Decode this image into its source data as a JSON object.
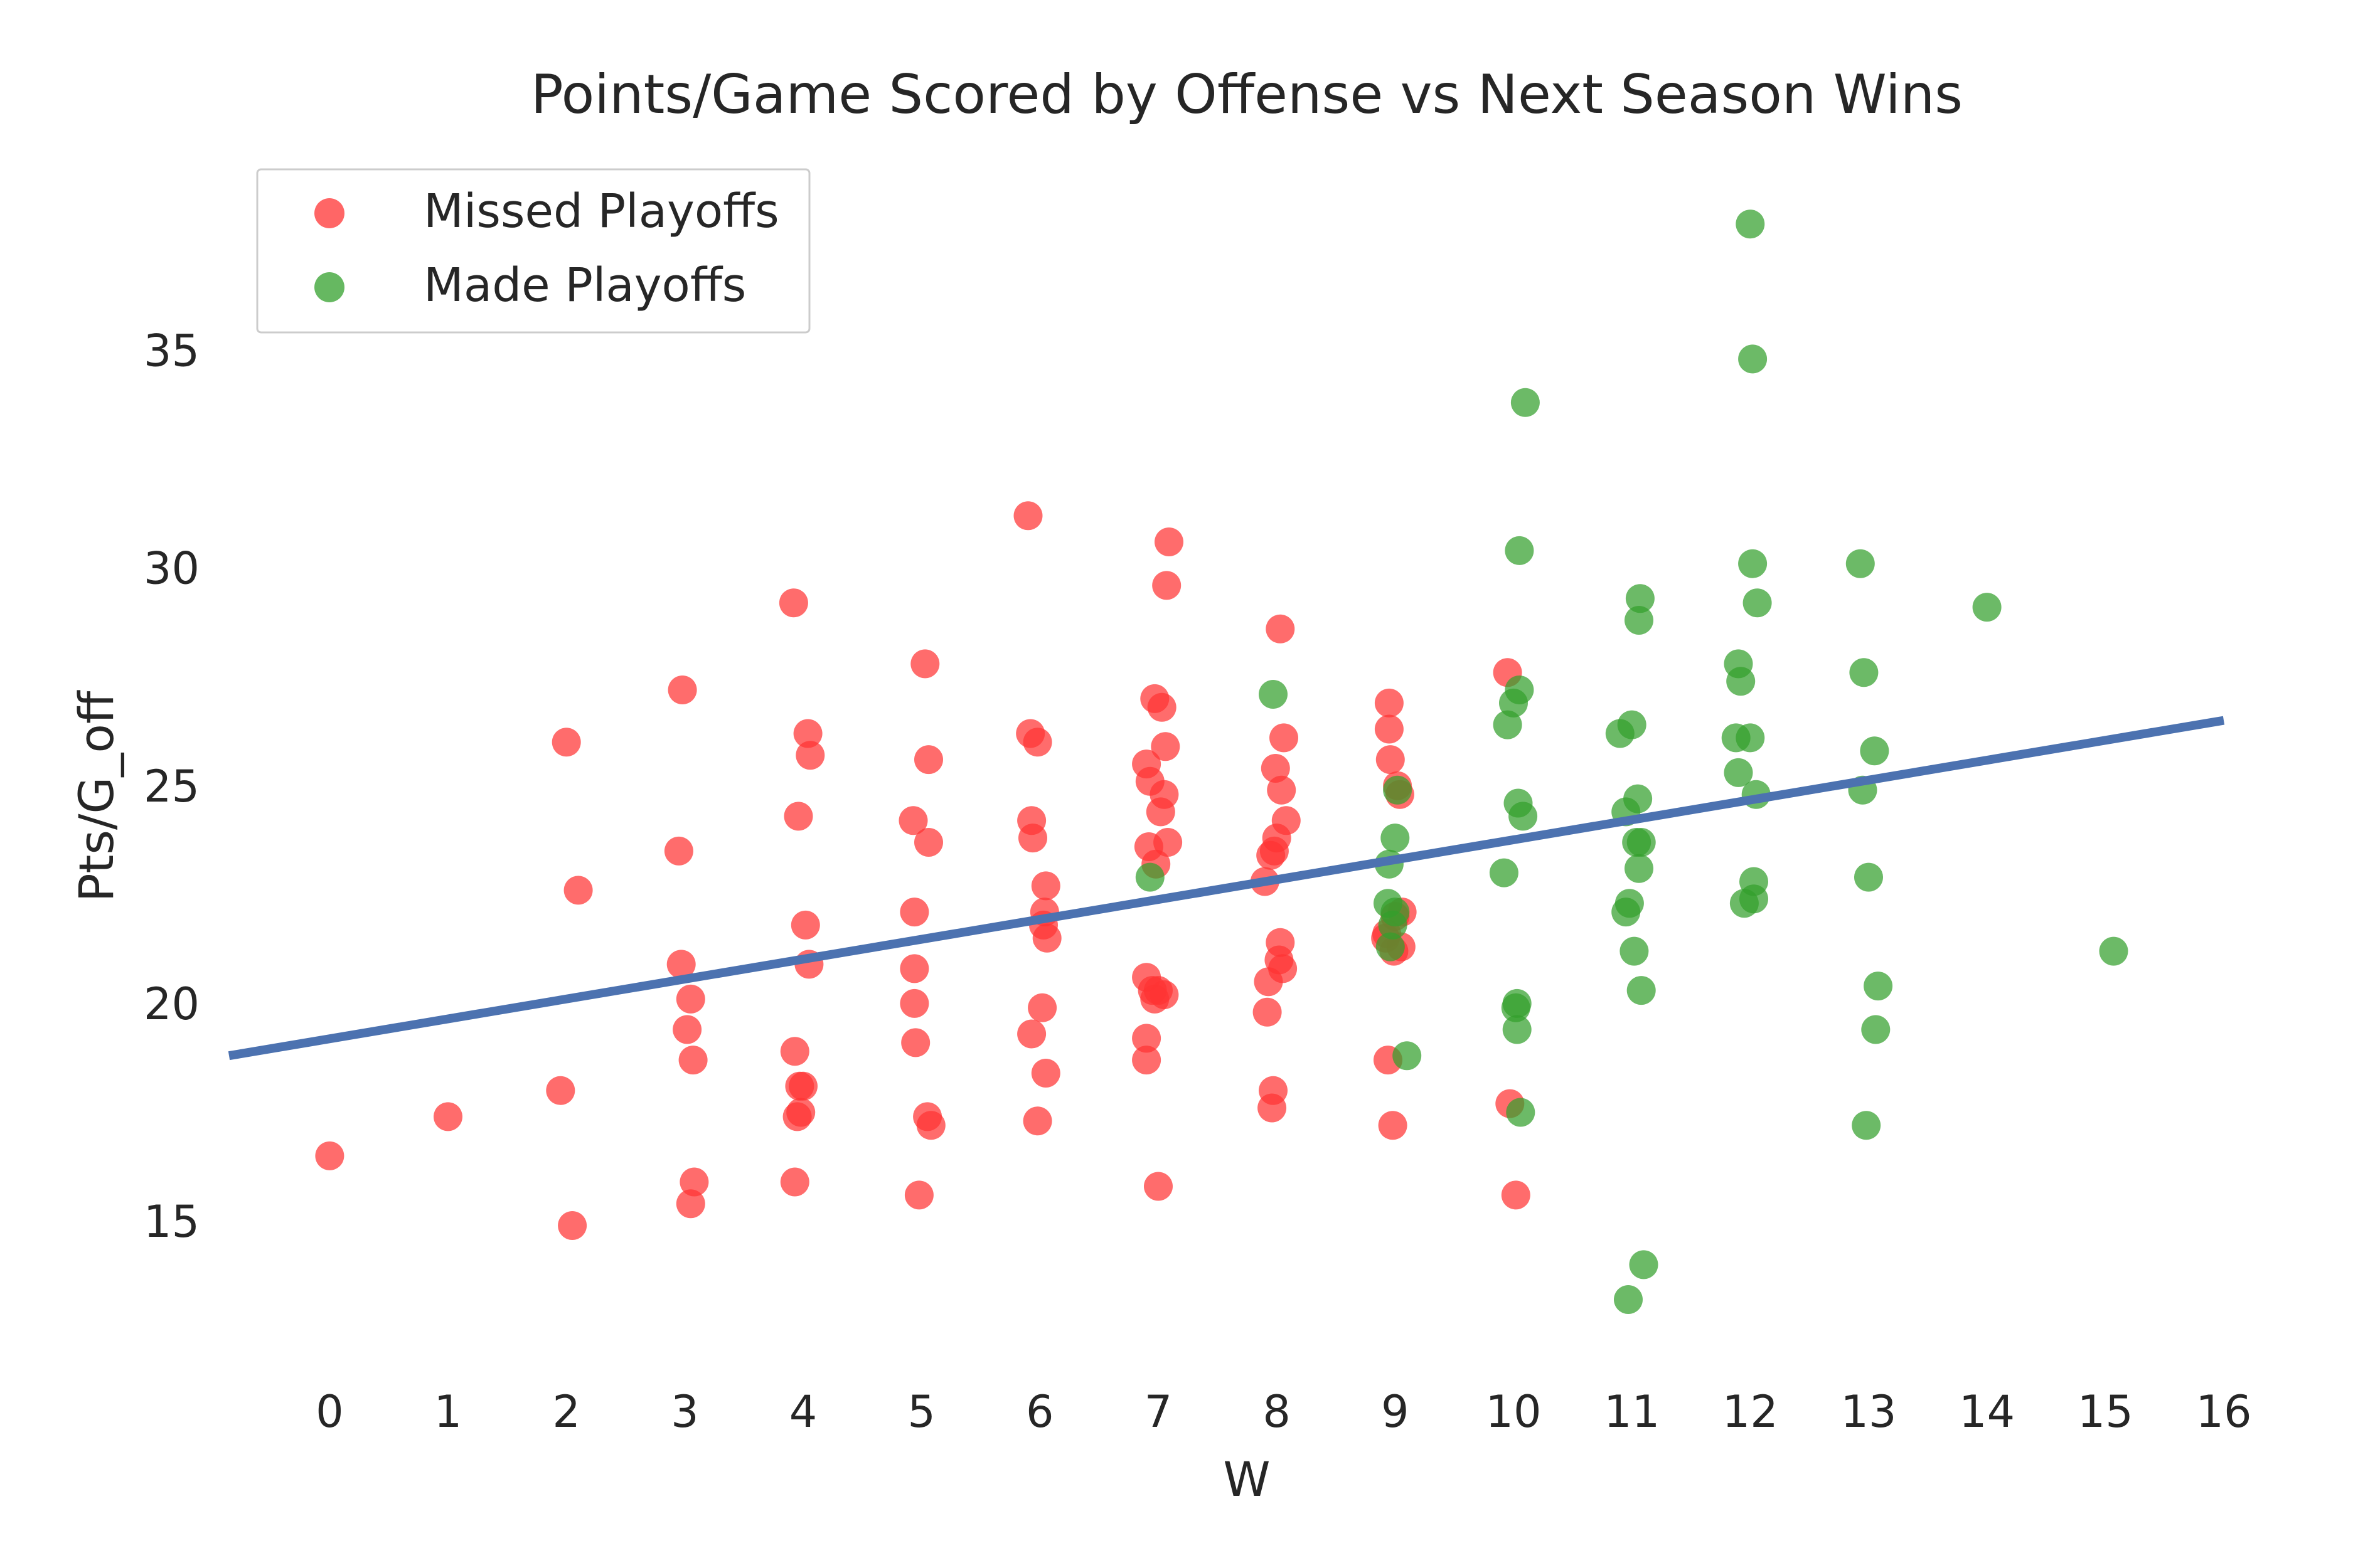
{
  "chart_data": {
    "type": "scatter",
    "title": "Points/Game Scored by Offense vs Next Season Wins",
    "xlabel": "W",
    "ylabel": "Pts/G_off",
    "xlim": [
      -0.85,
      16.35
    ],
    "ylim": [
      11.5,
      39.3
    ],
    "xticks": [
      0,
      1,
      2,
      3,
      4,
      5,
      6,
      7,
      8,
      9,
      10,
      11,
      12,
      13,
      14,
      15,
      16
    ],
    "yticks": [
      15,
      20,
      25,
      30,
      35
    ],
    "grid": false,
    "legend": "top-left",
    "regression_line": {
      "x": [
        -0.85,
        16.0
      ],
      "y": [
        18.8,
        26.5
      ],
      "color": "#4c72b0"
    },
    "series": [
      {
        "name": "Missed Playoffs",
        "color": "#ff3333",
        "points": [
          [
            0.0,
            16.5
          ],
          [
            1.0,
            17.4
          ],
          [
            1.95,
            18.0
          ],
          [
            2.0,
            26.0
          ],
          [
            2.05,
            14.9
          ],
          [
            2.1,
            22.6
          ],
          [
            2.95,
            23.5
          ],
          [
            2.97,
            20.9
          ],
          [
            2.98,
            27.2
          ],
          [
            3.02,
            19.4
          ],
          [
            3.05,
            20.1
          ],
          [
            3.05,
            15.4
          ],
          [
            3.07,
            18.7
          ],
          [
            3.08,
            15.9
          ],
          [
            3.92,
            29.2
          ],
          [
            3.93,
            18.9
          ],
          [
            3.93,
            15.9
          ],
          [
            3.95,
            17.4
          ],
          [
            3.96,
            24.3
          ],
          [
            3.97,
            18.1
          ],
          [
            3.98,
            17.5
          ],
          [
            4.0,
            18.1
          ],
          [
            4.02,
            21.8
          ],
          [
            4.04,
            26.2
          ],
          [
            4.05,
            20.9
          ],
          [
            4.06,
            25.7
          ],
          [
            4.93,
            24.2
          ],
          [
            4.94,
            22.1
          ],
          [
            4.94,
            20.8
          ],
          [
            4.94,
            20.0
          ],
          [
            4.95,
            19.1
          ],
          [
            4.98,
            15.6
          ],
          [
            5.03,
            27.8
          ],
          [
            5.05,
            17.4
          ],
          [
            5.06,
            25.6
          ],
          [
            5.06,
            23.7
          ],
          [
            5.08,
            17.2
          ],
          [
            5.9,
            31.2
          ],
          [
            5.92,
            26.2
          ],
          [
            5.93,
            24.2
          ],
          [
            5.93,
            19.3
          ],
          [
            5.94,
            23.8
          ],
          [
            5.98,
            26.0
          ],
          [
            5.98,
            17.3
          ],
          [
            6.02,
            19.9
          ],
          [
            6.03,
            21.8
          ],
          [
            6.04,
            22.1
          ],
          [
            6.05,
            22.7
          ],
          [
            6.05,
            18.4
          ],
          [
            6.06,
            21.5
          ],
          [
            6.9,
            25.5
          ],
          [
            6.9,
            20.6
          ],
          [
            6.9,
            19.2
          ],
          [
            6.9,
            18.7
          ],
          [
            6.92,
            23.6
          ],
          [
            6.93,
            25.1
          ],
          [
            6.95,
            20.3
          ],
          [
            6.97,
            27.0
          ],
          [
            6.97,
            20.1
          ],
          [
            6.98,
            23.2
          ],
          [
            7.0,
            15.8
          ],
          [
            7.0,
            20.3
          ],
          [
            7.02,
            24.4
          ],
          [
            7.03,
            26.8
          ],
          [
            7.05,
            24.8
          ],
          [
            7.05,
            20.2
          ],
          [
            7.06,
            25.9
          ],
          [
            7.07,
            29.6
          ],
          [
            7.08,
            23.7
          ],
          [
            7.09,
            30.6
          ],
          [
            7.9,
            22.8
          ],
          [
            7.92,
            19.8
          ],
          [
            7.93,
            20.5
          ],
          [
            7.95,
            23.4
          ],
          [
            7.96,
            17.6
          ],
          [
            7.97,
            18.0
          ],
          [
            7.98,
            23.5
          ],
          [
            7.99,
            25.4
          ],
          [
            8.0,
            23.8
          ],
          [
            8.02,
            21.0
          ],
          [
            8.03,
            28.6
          ],
          [
            8.03,
            21.4
          ],
          [
            8.04,
            24.9
          ],
          [
            8.05,
            20.8
          ],
          [
            8.06,
            26.1
          ],
          [
            8.08,
            24.2
          ],
          [
            8.92,
            21.5
          ],
          [
            8.93,
            21.6
          ],
          [
            8.94,
            18.7
          ],
          [
            8.95,
            26.9
          ],
          [
            8.95,
            26.3
          ],
          [
            8.96,
            25.6
          ],
          [
            8.98,
            17.2
          ],
          [
            8.99,
            21.2
          ],
          [
            9.0,
            22.0
          ],
          [
            9.02,
            25.0
          ],
          [
            9.04,
            24.8
          ],
          [
            9.05,
            21.3
          ],
          [
            9.06,
            22.1
          ],
          [
            9.95,
            27.6
          ],
          [
            9.97,
            17.7
          ],
          [
            10.02,
            15.6
          ]
        ]
      },
      {
        "name": "Made Playoffs",
        "color": "#33a02c",
        "points": [
          [
            6.93,
            22.9
          ],
          [
            7.97,
            27.1
          ],
          [
            8.94,
            22.3
          ],
          [
            8.95,
            23.2
          ],
          [
            8.96,
            21.3
          ],
          [
            8.98,
            21.8
          ],
          [
            9.0,
            23.8
          ],
          [
            9.0,
            22.1
          ],
          [
            9.02,
            24.9
          ],
          [
            9.1,
            18.8
          ],
          [
            9.92,
            23.0
          ],
          [
            9.95,
            26.4
          ],
          [
            10.0,
            26.9
          ],
          [
            10.02,
            19.9
          ],
          [
            10.03,
            20.0
          ],
          [
            10.03,
            19.4
          ],
          [
            10.04,
            24.6
          ],
          [
            10.05,
            27.2
          ],
          [
            10.05,
            30.4
          ],
          [
            10.06,
            17.5
          ],
          [
            10.08,
            24.3
          ],
          [
            10.1,
            33.8
          ],
          [
            10.9,
            26.2
          ],
          [
            10.95,
            24.4
          ],
          [
            10.95,
            22.1
          ],
          [
            10.97,
            13.2
          ],
          [
            10.98,
            22.3
          ],
          [
            11.0,
            26.4
          ],
          [
            11.02,
            21.2
          ],
          [
            11.04,
            23.7
          ],
          [
            11.05,
            24.7
          ],
          [
            11.06,
            28.8
          ],
          [
            11.06,
            23.1
          ],
          [
            11.07,
            29.3
          ],
          [
            11.08,
            20.3
          ],
          [
            11.08,
            23.7
          ],
          [
            11.1,
            14.0
          ],
          [
            11.88,
            26.1
          ],
          [
            11.9,
            25.3
          ],
          [
            11.9,
            27.8
          ],
          [
            11.92,
            27.4
          ],
          [
            11.95,
            22.3
          ],
          [
            12.0,
            26.1
          ],
          [
            12.0,
            37.9
          ],
          [
            12.02,
            34.8
          ],
          [
            12.02,
            30.1
          ],
          [
            12.03,
            22.8
          ],
          [
            12.03,
            22.4
          ],
          [
            12.05,
            24.8
          ],
          [
            12.06,
            29.2
          ],
          [
            12.93,
            30.1
          ],
          [
            12.95,
            24.9
          ],
          [
            12.96,
            27.6
          ],
          [
            12.98,
            17.2
          ],
          [
            13.0,
            22.9
          ],
          [
            13.05,
            25.8
          ],
          [
            13.06,
            19.4
          ],
          [
            13.08,
            20.4
          ],
          [
            14.0,
            29.1
          ],
          [
            15.07,
            21.2
          ]
        ]
      }
    ]
  }
}
